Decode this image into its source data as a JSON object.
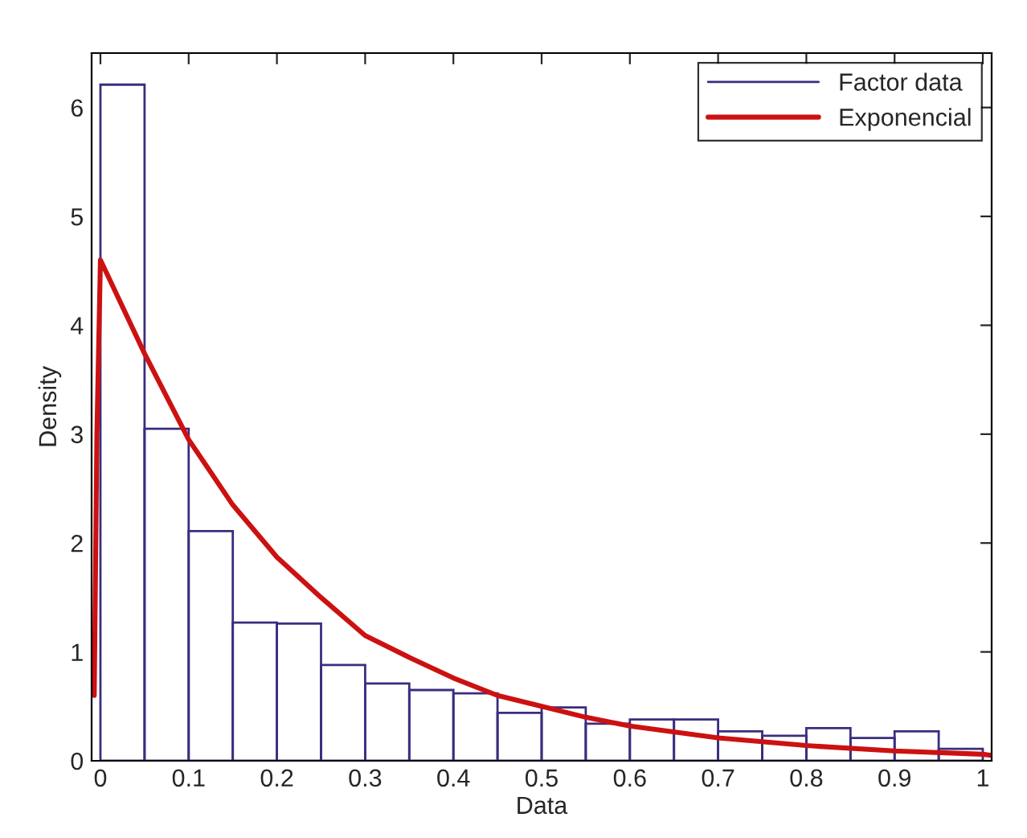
{
  "chart_data": {
    "type": "histogram",
    "xlabel": "Data",
    "ylabel": "Density",
    "xlim": [
      -0.01,
      1.01
    ],
    "ylim": [
      0,
      6.5
    ],
    "xticks": [
      0,
      0.1,
      0.2,
      0.3,
      0.4,
      0.5,
      0.6,
      0.7,
      0.8,
      0.9,
      1
    ],
    "yticks": [
      0,
      1,
      2,
      3,
      4,
      5,
      6
    ],
    "grid": false,
    "legend": "top right",
    "series": [
      {
        "name": "Factor data",
        "color": "#3b2d7e",
        "bins": [
          0,
          0.05,
          0.1,
          0.15,
          0.2,
          0.25,
          0.3,
          0.35,
          0.4,
          0.45,
          0.5,
          0.55,
          0.6,
          0.65,
          0.7,
          0.75,
          0.8,
          0.85,
          0.9,
          0.95,
          1.0
        ],
        "values": [
          6.21,
          3.05,
          2.11,
          1.27,
          1.26,
          0.88,
          0.71,
          0.65,
          0.62,
          0.44,
          0.49,
          0.34,
          0.38,
          0.38,
          0.27,
          0.23,
          0.3,
          0.21,
          0.27,
          0.11
        ]
      },
      {
        "type": "line",
        "name": "Exponencial",
        "color": "#cc1111",
        "x": [
          -0.007,
          -0.004,
          0.0,
          0.05,
          0.1,
          0.15,
          0.2,
          0.25,
          0.3,
          0.35,
          0.4,
          0.45,
          0.5,
          0.55,
          0.6,
          0.7,
          0.8,
          0.9,
          1.0,
          1.01
        ],
        "values": [
          0.6,
          3.0,
          4.6,
          3.74,
          2.95,
          2.35,
          1.87,
          1.5,
          1.15,
          0.95,
          0.76,
          0.6,
          0.5,
          0.4,
          0.32,
          0.21,
          0.14,
          0.09,
          0.06,
          0.05
        ]
      }
    ]
  }
}
